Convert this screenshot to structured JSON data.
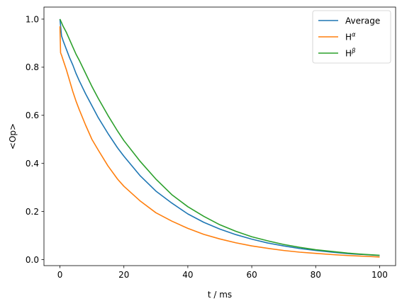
{
  "chart_data": {
    "type": "line",
    "title": "",
    "xlabel": "t / ms",
    "ylabel": "<Op>",
    "xlim": [
      -5,
      105
    ],
    "ylim": [
      -0.025,
      1.05
    ],
    "xticks": [
      0,
      20,
      40,
      60,
      80,
      100
    ],
    "yticks": [
      0.0,
      0.2,
      0.4,
      0.6,
      0.8,
      1.0
    ],
    "xtick_labels": [
      "0",
      "20",
      "40",
      "60",
      "80",
      "100"
    ],
    "ytick_labels": [
      "0.0",
      "0.2",
      "0.4",
      "0.6",
      "0.8",
      "1.0"
    ],
    "grid": false,
    "legend_position": "top-right",
    "series": [
      {
        "name": "Average",
        "legend_base": "Average",
        "legend_sup": "",
        "color": "#1f77b4",
        "x": [
          0,
          0.5,
          1,
          2,
          3,
          4,
          5,
          6,
          8,
          10,
          12,
          15,
          18,
          20,
          25,
          30,
          35,
          40,
          45,
          50,
          55,
          60,
          65,
          70,
          75,
          80,
          85,
          90,
          95,
          100
        ],
        "y": [
          1.0,
          0.93,
          0.91,
          0.875,
          0.84,
          0.81,
          0.775,
          0.745,
          0.69,
          0.64,
          0.59,
          0.525,
          0.465,
          0.43,
          0.35,
          0.285,
          0.235,
          0.19,
          0.155,
          0.127,
          0.104,
          0.085,
          0.069,
          0.057,
          0.046,
          0.038,
          0.031,
          0.025,
          0.021,
          0.017
        ]
      },
      {
        "name": "H^α",
        "legend_base": "H",
        "legend_sup": "α",
        "color": "#ff7f0e",
        "x": [
          0,
          0.2,
          0.5,
          1,
          2,
          3,
          4,
          5,
          6,
          8,
          10,
          12,
          15,
          18,
          20,
          25,
          30,
          35,
          40,
          45,
          50,
          55,
          60,
          65,
          70,
          75,
          80,
          85,
          90,
          95,
          100
        ],
        "y": [
          0.97,
          0.86,
          0.85,
          0.83,
          0.79,
          0.745,
          0.7,
          0.66,
          0.625,
          0.56,
          0.5,
          0.455,
          0.39,
          0.335,
          0.305,
          0.245,
          0.195,
          0.16,
          0.13,
          0.105,
          0.086,
          0.07,
          0.057,
          0.047,
          0.038,
          0.031,
          0.026,
          0.021,
          0.017,
          0.014,
          0.011
        ]
      },
      {
        "name": "H^β",
        "legend_base": "H",
        "legend_sup": "β",
        "color": "#2ca02c",
        "x": [
          0,
          1,
          2,
          3,
          4,
          5,
          6,
          8,
          10,
          12,
          15,
          18,
          20,
          25,
          30,
          35,
          40,
          45,
          50,
          55,
          60,
          65,
          70,
          75,
          80,
          85,
          90,
          95,
          100
        ],
        "y": [
          1.0,
          0.97,
          0.945,
          0.915,
          0.885,
          0.855,
          0.83,
          0.775,
          0.72,
          0.67,
          0.6,
          0.535,
          0.495,
          0.41,
          0.335,
          0.27,
          0.22,
          0.18,
          0.145,
          0.118,
          0.095,
          0.078,
          0.063,
          0.051,
          0.041,
          0.034,
          0.027,
          0.022,
          0.018
        ]
      }
    ]
  }
}
